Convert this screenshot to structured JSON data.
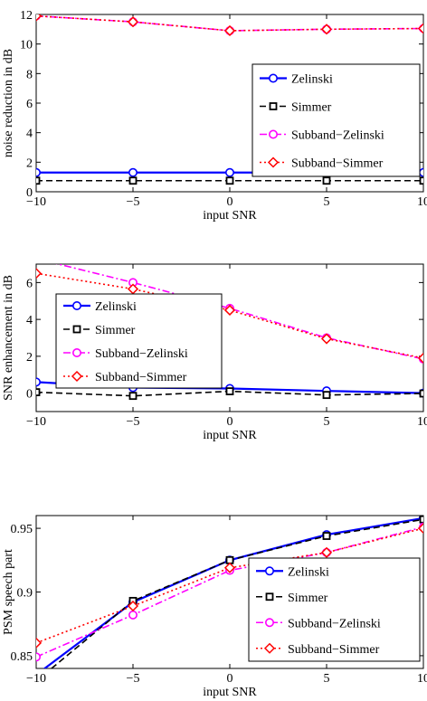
{
  "chart_data": [
    {
      "type": "line",
      "x": [
        -10,
        -5,
        0,
        5,
        10
      ],
      "xlabel": "input SNR",
      "ylabel": "noise reduction in dB",
      "xlim": [
        -10,
        10
      ],
      "ylim": [
        0,
        12
      ],
      "xticks": [
        -10,
        -5,
        0,
        5,
        10
      ],
      "yticks": [
        0,
        2,
        4,
        6,
        8,
        10,
        12
      ],
      "xtick_labels": [
        "−10",
        "−5",
        "0",
        "5",
        "10"
      ],
      "ytick_labels": [
        "0",
        "2",
        "4",
        "6",
        "8",
        "10",
        "12"
      ],
      "grid": false,
      "legend_position": "right",
      "series": [
        {
          "name": "Zelinski",
          "values": [
            1.3,
            1.3,
            1.3,
            1.3,
            1.3
          ],
          "color": "#0000ff",
          "line": "solid",
          "marker": "circle"
        },
        {
          "name": "Simmer",
          "values": [
            0.75,
            0.75,
            0.75,
            0.75,
            0.75
          ],
          "color": "#000000",
          "line": "dashed",
          "marker": "square"
        },
        {
          "name": "Subband−Zelinski",
          "values": [
            11.9,
            11.5,
            10.9,
            11.0,
            11.05
          ],
          "color": "#ff00ff",
          "line": "dashdot",
          "marker": "circle"
        },
        {
          "name": "Subband−Simmer",
          "values": [
            11.9,
            11.5,
            10.9,
            11.0,
            11.05
          ],
          "color": "#ff0000",
          "line": "dotted",
          "marker": "diamond"
        }
      ]
    },
    {
      "type": "line",
      "x": [
        -10,
        -5,
        0,
        5,
        10
      ],
      "xlabel": "input SNR",
      "ylabel": "SNR enhancement in dB",
      "xlim": [
        -10,
        10
      ],
      "ylim": [
        -1,
        7
      ],
      "xticks": [
        -10,
        -5,
        0,
        5,
        10
      ],
      "yticks": [
        0,
        2,
        4,
        6
      ],
      "xtick_labels": [
        "−10",
        "−5",
        "0",
        "5",
        "10"
      ],
      "ytick_labels": [
        "0",
        "2",
        "4",
        "6"
      ],
      "grid": false,
      "legend_position": "left",
      "series": [
        {
          "name": "Zelinski",
          "values": [
            0.6,
            0.3,
            0.25,
            0.12,
            0.0
          ],
          "color": "#0000ff",
          "line": "solid",
          "marker": "circle"
        },
        {
          "name": "Simmer",
          "values": [
            0.05,
            -0.15,
            0.1,
            -0.1,
            -0.02
          ],
          "color": "#000000",
          "line": "dashed",
          "marker": "square"
        },
        {
          "name": "Subband−Zelinski",
          "values": [
            7.3,
            6.0,
            4.6,
            3.0,
            1.85
          ],
          "color": "#ff00ff",
          "line": "dashdot",
          "marker": "circle"
        },
        {
          "name": "Subband−Simmer",
          "values": [
            6.5,
            5.65,
            4.5,
            2.95,
            1.9
          ],
          "color": "#ff0000",
          "line": "dotted",
          "marker": "diamond"
        }
      ]
    },
    {
      "type": "line",
      "x": [
        -10,
        -5,
        0,
        5,
        10
      ],
      "xlabel": "input SNR",
      "ylabel": "PSM speech part",
      "xlim": [
        -10,
        10
      ],
      "ylim": [
        0.84,
        0.96
      ],
      "xticks": [
        -10,
        -5,
        0,
        5,
        10
      ],
      "yticks": [
        0.85,
        0.9,
        0.95
      ],
      "xtick_labels": [
        "−10",
        "−5",
        "0",
        "5",
        "10"
      ],
      "ytick_labels": [
        "0.85",
        "0.9",
        "0.95"
      ],
      "grid": false,
      "legend_position": "right",
      "series": [
        {
          "name": "Zelinski",
          "values": [
            0.835,
            0.892,
            0.925,
            0.945,
            0.958
          ],
          "color": "#0000ff",
          "line": "solid",
          "marker": "circle"
        },
        {
          "name": "Simmer",
          "values": [
            0.83,
            0.893,
            0.925,
            0.944,
            0.957
          ],
          "color": "#000000",
          "line": "dashed",
          "marker": "square"
        },
        {
          "name": "Subband−Zelinski",
          "values": [
            0.849,
            0.882,
            0.917,
            0.931,
            0.951
          ],
          "color": "#ff00ff",
          "line": "dashdot",
          "marker": "circle"
        },
        {
          "name": "Subband−Simmer",
          "values": [
            0.86,
            0.889,
            0.919,
            0.931,
            0.95
          ],
          "color": "#ff0000",
          "line": "dotted",
          "marker": "diamond"
        }
      ]
    }
  ]
}
